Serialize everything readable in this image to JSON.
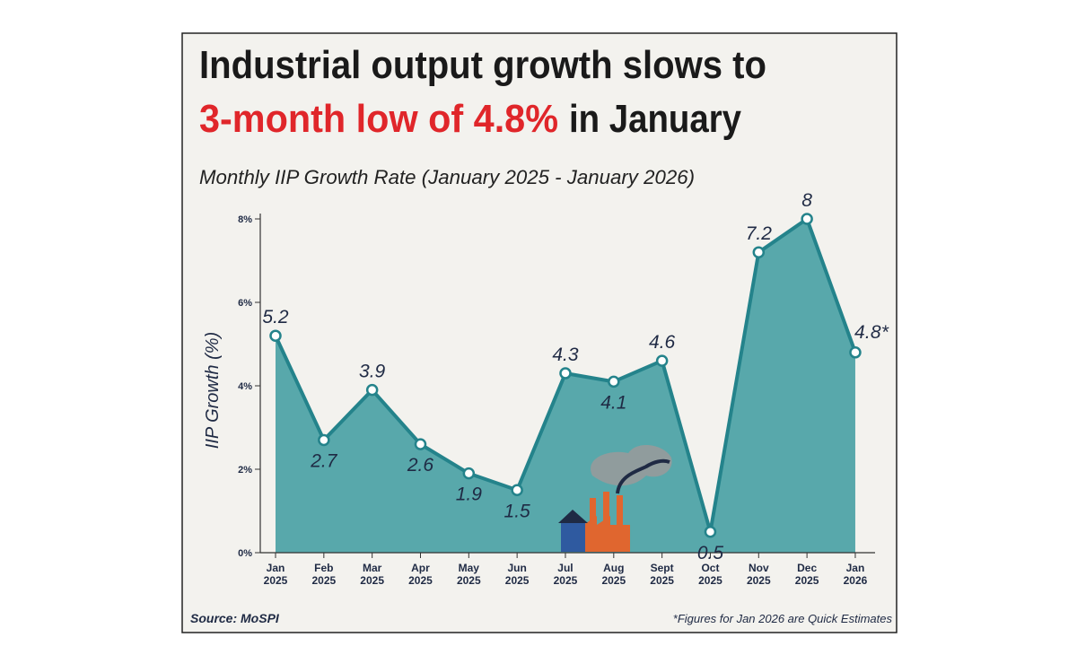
{
  "title_line1": "Industrial output growth slows to",
  "title_highlight": "3-month low of 4.8%",
  "title_rest": "in January",
  "chart_data": {
    "type": "area",
    "subtitle": "Monthly IIP Growth Rate (January 2025 - January 2026)",
    "y_label": "IIP Growth (%)",
    "categories": [
      "Jan 2025",
      "Feb 2025",
      "Mar 2025",
      "Apr 2025",
      "May 2025",
      "Jun 2025",
      "Jul 2025",
      "Aug 2025",
      "Sept 2025",
      "Oct 2025",
      "Nov 2025",
      "Dec 2025",
      "Jan 2026"
    ],
    "values": [
      5.2,
      2.7,
      3.9,
      2.6,
      1.9,
      1.5,
      4.3,
      4.1,
      4.6,
      0.5,
      7.2,
      8,
      4.8
    ],
    "value_labels": [
      "5.2",
      "2.7",
      "3.9",
      "2.6",
      "1.9",
      "1.5",
      "4.3",
      "4.1",
      "4.6",
      "0.5",
      "7.2",
      "8",
      "4.8*"
    ],
    "color": "#4fa3a6",
    "line_color": "#24838b",
    "ylim": [
      0,
      8
    ],
    "yticks": [
      {
        "value": 0,
        "label": "0%"
      },
      {
        "value": 2,
        "label": "2%"
      },
      {
        "value": 4,
        "label": "4%"
      },
      {
        "value": 6,
        "label": "6%"
      },
      {
        "value": 8,
        "label": "8%"
      }
    ],
    "source": "Source: MoSPI",
    "footnote": "*Figures for Jan 2026 are Quick Estimates"
  }
}
